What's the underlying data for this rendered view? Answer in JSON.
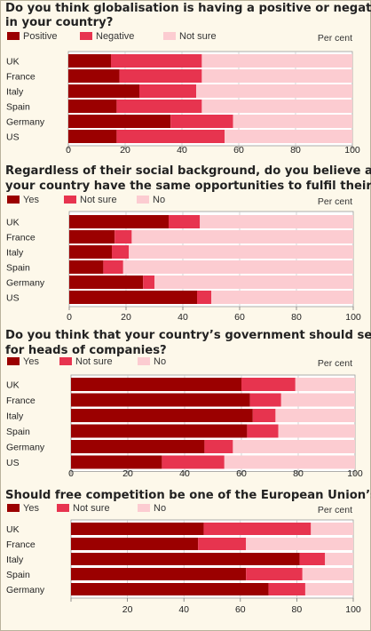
{
  "colors": {
    "yes": "#9b0000",
    "mid": "#e7344f",
    "light": "#fcccd1",
    "plotbg": "#ffffff"
  },
  "chart_data": [
    {
      "type": "bar",
      "orientation": "horizontal",
      "stacked": true,
      "title": [
        "Do you think globalisation is having a positive or negative effect",
        "in your country?"
      ],
      "unit": "Per cent",
      "categories": [
        "UK",
        "France",
        "Italy",
        "Spain",
        "Germany",
        "US"
      ],
      "series": [
        {
          "name": "Positive",
          "values": [
            15,
            18,
            25,
            17,
            36,
            17
          ]
        },
        {
          "name": "Negative",
          "values": [
            32,
            29,
            20,
            30,
            22,
            38
          ]
        },
        {
          "name": "Not sure",
          "values": [
            53,
            53,
            55,
            53,
            42,
            45
          ]
        }
      ],
      "xlim": [
        0,
        100
      ],
      "xticks": [
        "0",
        "20",
        "40",
        "60",
        "80",
        "100"
      ],
      "grid": true
    },
    {
      "type": "bar",
      "orientation": "horizontal",
      "stacked": true,
      "title": [
        "Regardless of their social background, do you believe all people in",
        "your country have the same opportunities to fulfil their potential?"
      ],
      "unit": "Per cent",
      "categories": [
        "UK",
        "France",
        "Italy",
        "Spain",
        "Germany",
        "US"
      ],
      "series": [
        {
          "name": "Yes",
          "values": [
            35,
            16,
            15,
            12,
            26,
            45
          ]
        },
        {
          "name": "Not sure",
          "values": [
            11,
            6,
            6,
            7,
            4,
            5
          ]
        },
        {
          "name": "No",
          "values": [
            54,
            78,
            79,
            81,
            70,
            50
          ]
        }
      ],
      "xlim": [
        0,
        100
      ],
      "xticks": [
        "0",
        "20",
        "40",
        "60",
        "80",
        "100"
      ],
      "grid": true
    },
    {
      "type": "bar",
      "orientation": "horizontal",
      "stacked": true,
      "title": [
        "Do you think that your country’s government should set pay caps",
        "for heads of companies?"
      ],
      "unit": "Per cent",
      "categories": [
        "UK",
        "France",
        "Italy",
        "Spain",
        "Germany",
        "US"
      ],
      "series": [
        {
          "name": "Yes",
          "values": [
            60,
            63,
            64,
            62,
            47,
            32
          ]
        },
        {
          "name": "Not sure",
          "values": [
            19,
            11,
            8,
            11,
            10,
            22
          ]
        },
        {
          "name": "No",
          "values": [
            21,
            26,
            28,
            27,
            43,
            46
          ]
        }
      ],
      "xlim": [
        0,
        100
      ],
      "xticks": [
        "0",
        "20",
        "40",
        "60",
        "80",
        "100"
      ],
      "grid": true
    },
    {
      "type": "bar",
      "orientation": "horizontal",
      "stacked": true,
      "title": [
        "Should free competition be one of the European Union’s objectives?"
      ],
      "unit": "Per cent",
      "categories": [
        "UK",
        "France",
        "Italy",
        "Spain",
        "Germany"
      ],
      "series": [
        {
          "name": "Yes",
          "values": [
            47,
            45,
            81,
            62,
            70
          ]
        },
        {
          "name": "Not sure",
          "values": [
            38,
            17,
            9,
            20,
            13
          ]
        },
        {
          "name": "No",
          "values": [
            15,
            38,
            10,
            18,
            17
          ]
        }
      ],
      "xlim": [
        0,
        100
      ],
      "xticks": [
        "",
        "20",
        "40",
        "60",
        "80",
        "100"
      ],
      "grid": true
    }
  ]
}
